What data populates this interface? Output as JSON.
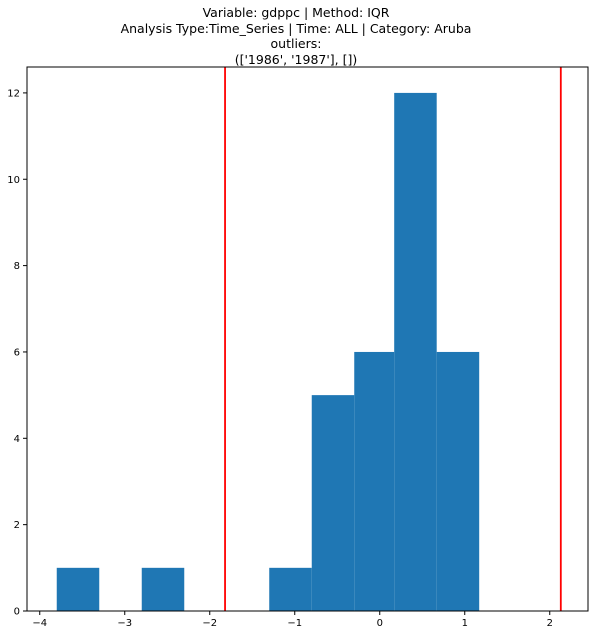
{
  "chart_data": {
    "type": "bar",
    "title_lines": [
      "Variable: gdppc | Method: IQR",
      "Analysis Type:Time_Series | Time: ALL | Category: Aruba",
      "outliers:",
      "(['1986', '1987'], [])"
    ],
    "xlabel": "",
    "ylabel": "",
    "xlim": [
      -4.15,
      2.45
    ],
    "ylim": [
      0,
      12.6
    ],
    "x_ticks": [
      -4,
      -3,
      -2,
      -1,
      0,
      1,
      2
    ],
    "y_ticks": [
      0,
      2,
      4,
      6,
      8,
      10,
      12
    ],
    "bins": [
      {
        "x0": -3.8,
        "x1": -3.3,
        "count": 1
      },
      {
        "x0": -3.3,
        "x1": -2.8,
        "count": 0
      },
      {
        "x0": -2.8,
        "x1": -2.3,
        "count": 1
      },
      {
        "x0": -2.3,
        "x1": -1.8,
        "count": 0
      },
      {
        "x0": -1.8,
        "x1": -1.3,
        "count": 0
      },
      {
        "x0": -1.3,
        "x1": -0.8,
        "count": 1
      },
      {
        "x0": -0.8,
        "x1": -0.3,
        "count": 5
      },
      {
        "x0": -0.3,
        "x1": 0.17,
        "count": 6
      },
      {
        "x0": 0.17,
        "x1": 0.67,
        "count": 12
      },
      {
        "x0": 0.67,
        "x1": 1.17,
        "count": 6
      }
    ],
    "vertical_lines": [
      {
        "x": -1.82,
        "color": "#ff0000"
      },
      {
        "x": 2.13,
        "color": "#ff0000"
      }
    ],
    "bar_color": "#1f77b4",
    "grid": false
  }
}
